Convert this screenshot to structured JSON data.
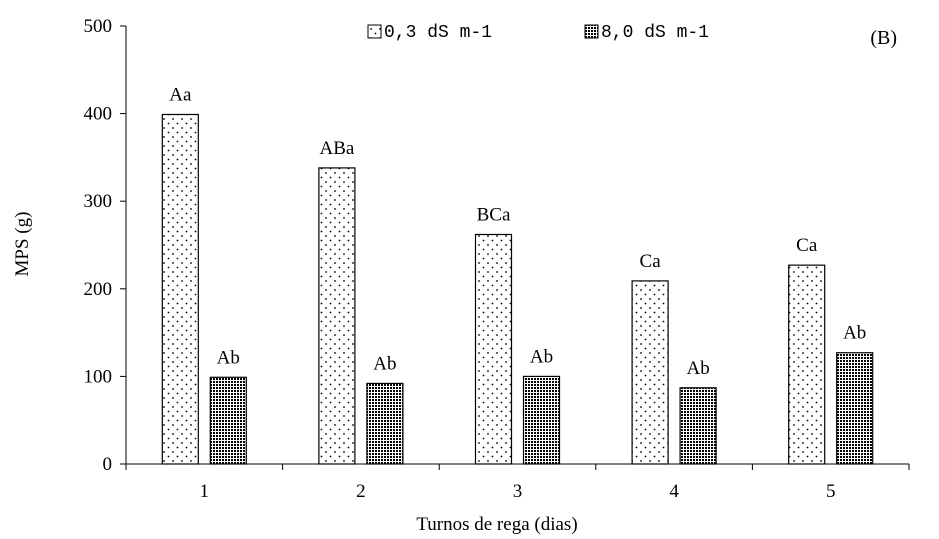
{
  "chart_data": {
    "type": "bar",
    "categories": [
      "1",
      "2",
      "3",
      "4",
      "5"
    ],
    "series": [
      {
        "name": "0,3 dS m-1",
        "values": [
          399,
          338,
          262,
          209,
          227
        ],
        "labels": [
          "Aa",
          "ABa",
          "BCa",
          "Ca",
          "Ca"
        ],
        "pattern": "dots"
      },
      {
        "name": "8,0 dS m-1",
        "values": [
          99,
          92,
          100,
          87,
          127
        ],
        "labels": [
          "Ab",
          "Ab",
          "Ab",
          "Ab",
          "Ab"
        ],
        "pattern": "crosshatch"
      }
    ],
    "title": "",
    "panel_tag": "(B)",
    "xlabel": "Turnos de rega (dias)",
    "ylabel": "MPS (g)",
    "ylim": [
      0,
      500
    ],
    "yticks": [
      0,
      100,
      200,
      300,
      400,
      500
    ],
    "grid": false,
    "legend": "top-center"
  }
}
